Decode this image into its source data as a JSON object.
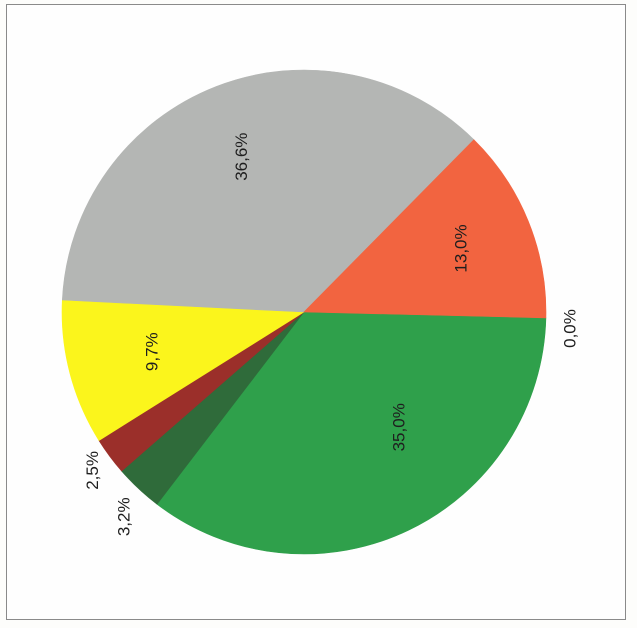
{
  "chart_data": {
    "type": "pie",
    "title": "",
    "slices": [
      {
        "label": "35,0%",
        "value": 35.0,
        "color": "#2fa04b"
      },
      {
        "label": "3,2%",
        "value": 3.2,
        "color": "#2f6b3a"
      },
      {
        "label": "2,5%",
        "value": 2.5,
        "color": "#9b2f2a"
      },
      {
        "label": "9,7%",
        "value": 9.7,
        "color": "#fbf51c"
      },
      {
        "label": "36,6%",
        "value": 36.6,
        "color": "#b4b6b4"
      },
      {
        "label": "13,0%",
        "value": 13.0,
        "color": "#f26440"
      },
      {
        "label": "0,0%",
        "value": 0.0,
        "color": "#8fae3a"
      }
    ],
    "orientation": "rotated 90° counter-clockwise",
    "legend": "none"
  }
}
